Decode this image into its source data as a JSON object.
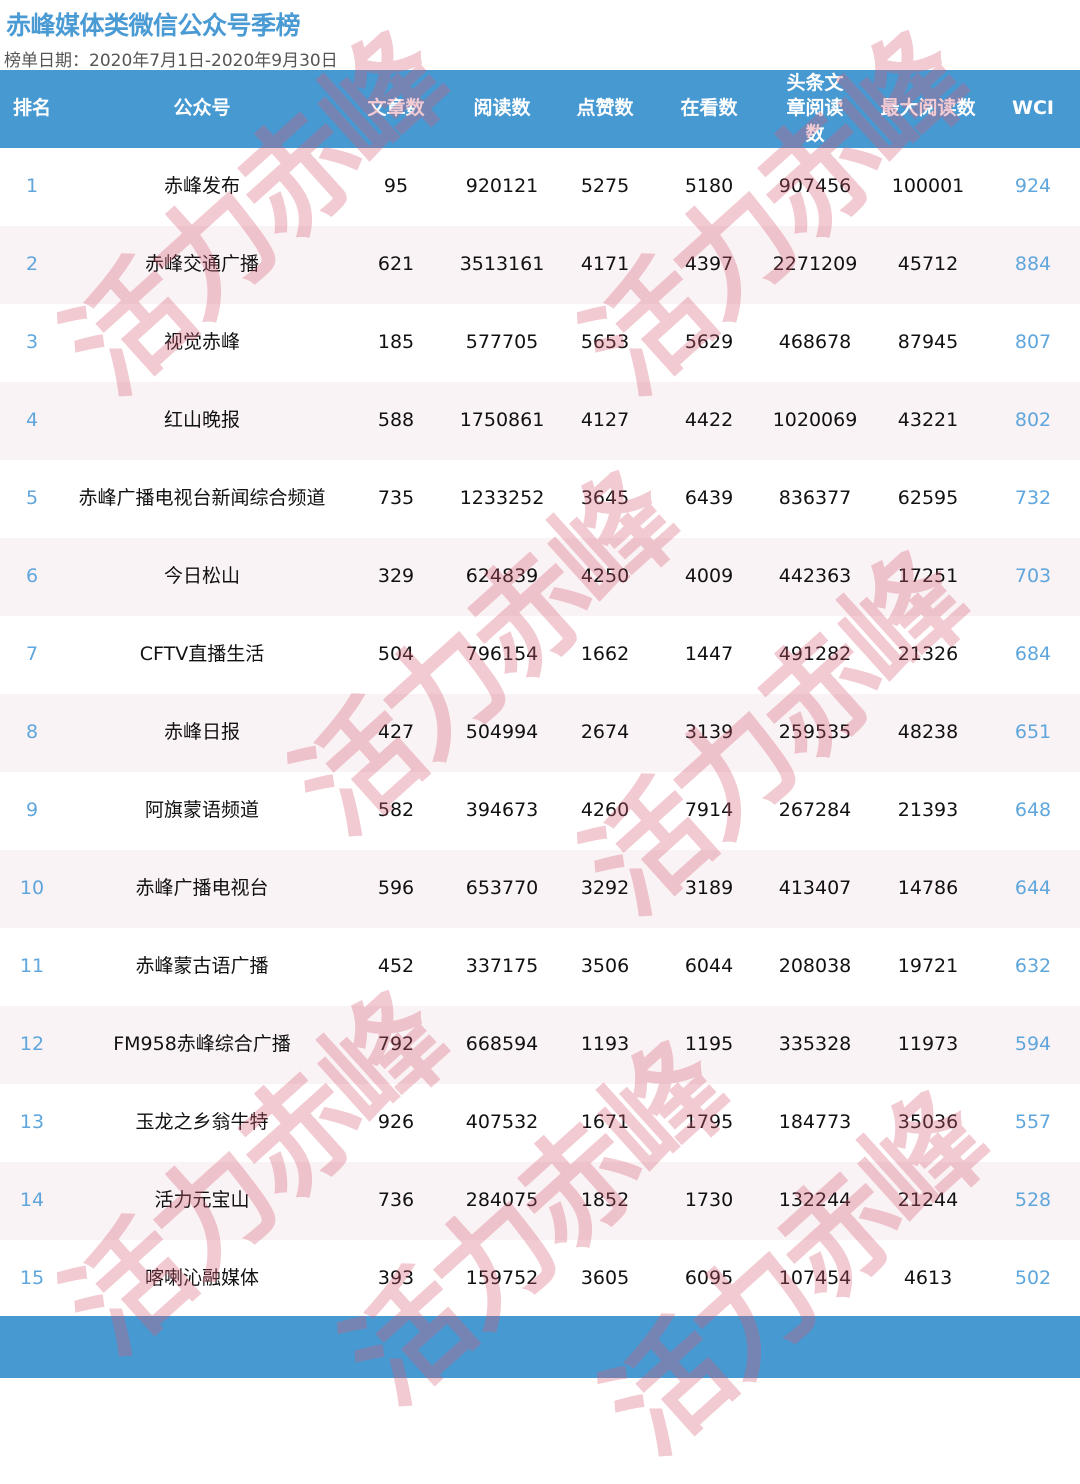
{
  "title": "赤峰媒体类微信公众号季榜",
  "date_range": "榜单日期：2020年7月1日-2020年9月30日",
  "watermark": "活力赤峰",
  "colors": {
    "header_bg": "#4799d2",
    "title": "#4a9ad4",
    "rank_wci": "#5fa6dc",
    "alt_row": "#faf3f5"
  },
  "columns": [
    "排名",
    "公众号",
    "文章数",
    "阅读数",
    "点赞数",
    "在看数",
    "头条文章阅读数",
    "最大阅读数",
    "WCI"
  ],
  "rows": [
    [
      "1",
      "赤峰发布",
      "95",
      "920121",
      "5275",
      "5180",
      "907456",
      "100001",
      "924"
    ],
    [
      "2",
      "赤峰交通广播",
      "621",
      "3513161",
      "4171",
      "4397",
      "2271209",
      "45712",
      "884"
    ],
    [
      "3",
      "视觉赤峰",
      "185",
      "577705",
      "5653",
      "5629",
      "468678",
      "87945",
      "807"
    ],
    [
      "4",
      "红山晚报",
      "588",
      "1750861",
      "4127",
      "4422",
      "1020069",
      "43221",
      "802"
    ],
    [
      "5",
      "赤峰广播电视台新闻综合频道",
      "735",
      "1233252",
      "3645",
      "6439",
      "836377",
      "62595",
      "732"
    ],
    [
      "6",
      "今日松山",
      "329",
      "624839",
      "4250",
      "4009",
      "442363",
      "17251",
      "703"
    ],
    [
      "7",
      "CFTV直播生活",
      "504",
      "796154",
      "1662",
      "1447",
      "491282",
      "21326",
      "684"
    ],
    [
      "8",
      "赤峰日报",
      "427",
      "504994",
      "2674",
      "3139",
      "259535",
      "48238",
      "651"
    ],
    [
      "9",
      "阿旗蒙语频道",
      "582",
      "394673",
      "4260",
      "7914",
      "267284",
      "21393",
      "648"
    ],
    [
      "10",
      "赤峰广播电视台",
      "596",
      "653770",
      "3292",
      "3189",
      "413407",
      "14786",
      "644"
    ],
    [
      "11",
      "赤峰蒙古语广播",
      "452",
      "337175",
      "3506",
      "6044",
      "208038",
      "19721",
      "632"
    ],
    [
      "12",
      "FM958赤峰综合广播",
      "792",
      "668594",
      "1193",
      "1195",
      "335328",
      "11973",
      "594"
    ],
    [
      "13",
      "玉龙之乡翁牛特",
      "926",
      "407532",
      "1671",
      "1795",
      "184773",
      "35036",
      "557"
    ],
    [
      "14",
      "活力元宝山",
      "736",
      "284075",
      "1852",
      "1730",
      "132244",
      "21244",
      "528"
    ],
    [
      "15",
      "喀喇沁融媒体",
      "393",
      "159752",
      "3605",
      "6095",
      "107454",
      "4613",
      "502"
    ]
  ]
}
